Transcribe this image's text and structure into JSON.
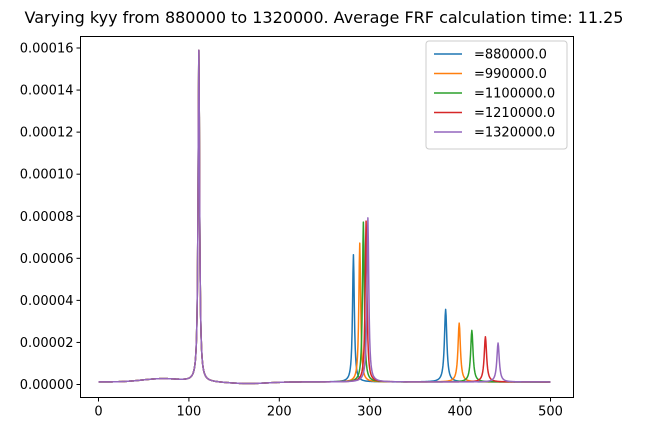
{
  "chart_data": {
    "type": "line",
    "title": "Varying kyy from 880000 to 1320000. Average FRF calculation time: 11.25",
    "xlabel": "",
    "ylabel": "",
    "xlim": [
      0,
      500
    ],
    "ylim": [
      0,
      0.00016
    ],
    "x_ticks": [
      0,
      100,
      200,
      300,
      400,
      500
    ],
    "x_tick_labels": [
      "0",
      "100",
      "200",
      "300",
      "400",
      "500"
    ],
    "y_ticks": [
      0,
      2e-05,
      4e-05,
      6e-05,
      8e-05,
      0.0001,
      0.00012,
      0.00014,
      0.00016
    ],
    "y_tick_labels": [
      "0.00000",
      "0.00002",
      "0.00004",
      "0.00006",
      "0.00008",
      "0.00010",
      "0.00012",
      "0.00014",
      "0.00016"
    ],
    "grid": false,
    "legend_position": "top-right",
    "common_peak": {
      "x": 111,
      "y": 0.00016
    },
    "series": [
      {
        "name": "=880000.0",
        "color": "#1f77b4",
        "peak2_x": 282,
        "peak2_y": 6.25e-05,
        "peak3_x": 384,
        "peak3_y": 3.55e-05
      },
      {
        "name": "=990000.0",
        "color": "#ff7f0e",
        "peak2_x": 289,
        "peak2_y": 6.8e-05,
        "peak3_x": 399,
        "peak3_y": 2.9e-05
      },
      {
        "name": "=1100000.0",
        "color": "#2ca02c",
        "peak2_x": 293,
        "peak2_y": 7.8e-05,
        "peak3_x": 413,
        "peak3_y": 2.55e-05
      },
      {
        "name": "=1210000.0",
        "color": "#d62728",
        "peak2_x": 296,
        "peak2_y": 7.85e-05,
        "peak3_x": 428,
        "peak3_y": 2.25e-05
      },
      {
        "name": "=1320000.0",
        "color": "#9467bd",
        "peak2_x": 298,
        "peak2_y": 8e-05,
        "peak3_x": 442,
        "peak3_y": 1.95e-05
      }
    ]
  }
}
